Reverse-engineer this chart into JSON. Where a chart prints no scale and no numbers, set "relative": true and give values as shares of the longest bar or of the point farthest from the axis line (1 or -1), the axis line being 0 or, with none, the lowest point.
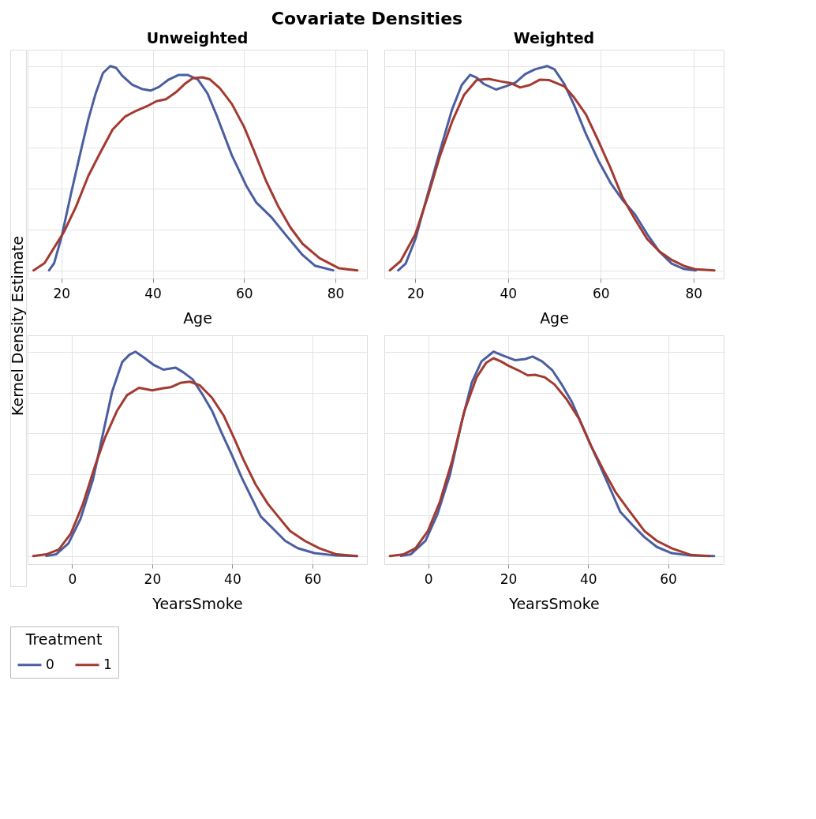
{
  "chart_data": [
    {
      "type": "line",
      "title": "Covariate Densities",
      "subtitle": "Unweighted",
      "xlabel": "Age",
      "ylabel": "Kernel Density Estimate",
      "relative": true,
      "xlim": [
        12.6,
        86.9
      ],
      "xticks": [
        20,
        40,
        60,
        80
      ],
      "grid": true,
      "legend": "bottom",
      "legend_title": "Treatment",
      "marker": "none",
      "line_style": "solid",
      "series": [
        {
          "name": "0",
          "color": "#4a5ea0",
          "x": [
            17.3,
            18.4,
            20,
            22.1,
            24.3,
            25.9,
            27.5,
            29.1,
            30.7,
            32.0,
            33.3,
            35.5,
            37.6,
            39.5,
            41.3,
            43.5,
            45.6,
            47.7,
            49.9,
            52.0,
            54.1,
            57.3,
            60.5,
            62.7,
            65.9,
            69.1,
            72.8,
            75.5,
            79.5
          ],
          "values": [
            0,
            0.035,
            0.161,
            0.375,
            0.589,
            0.74,
            0.866,
            0.966,
            1.0,
            0.991,
            0.953,
            0.909,
            0.888,
            0.88,
            0.897,
            0.934,
            0.956,
            0.956,
            0.934,
            0.865,
            0.752,
            0.564,
            0.413,
            0.331,
            0.262,
            0.174,
            0.075,
            0.023,
            0
          ]
        },
        {
          "name": "1",
          "color": "#a33a30",
          "x": [
            13.9,
            16.3,
            18.4,
            20.5,
            23.2,
            25.9,
            28.5,
            31.2,
            33.9,
            36.0,
            38.7,
            40.8,
            42.9,
            45.1,
            47.2,
            48.8,
            50.9,
            52.5,
            54.7,
            57.3,
            60.0,
            62.1,
            64.8,
            67.5,
            70.1,
            72.8,
            76.5,
            80.8,
            84.8
          ],
          "values": [
            0,
            0.035,
            0.111,
            0.186,
            0.312,
            0.463,
            0.576,
            0.689,
            0.752,
            0.777,
            0.803,
            0.828,
            0.838,
            0.872,
            0.916,
            0.941,
            0.945,
            0.935,
            0.891,
            0.815,
            0.702,
            0.589,
            0.438,
            0.312,
            0.211,
            0.13,
            0.06,
            0.01,
            0
          ]
        }
      ]
    },
    {
      "type": "line",
      "subtitle": "Weighted",
      "xlabel": "Age",
      "relative": true,
      "xlim": [
        13.3,
        86.5
      ],
      "xticks": [
        20,
        40,
        60,
        80
      ],
      "grid": true,
      "marker": "none",
      "line_style": "solid",
      "series": [
        {
          "color": "#4a5ea0",
          "x": [
            16.3,
            17.9,
            20,
            22.6,
            25.3,
            27.9,
            30.0,
            31.8,
            33.2,
            34.7,
            37.4,
            39.5,
            41.6,
            43.7,
            45.8,
            48.4,
            50.0,
            52.1,
            54.2,
            56.8,
            59.5,
            62.1,
            64.7,
            67.4,
            70.0,
            72.6,
            75.3,
            77.9,
            80.5
          ],
          "values": [
            0,
            0.033,
            0.153,
            0.368,
            0.584,
            0.787,
            0.907,
            0.957,
            0.943,
            0.913,
            0.885,
            0.901,
            0.919,
            0.961,
            0.984,
            1,
            0.984,
            0.913,
            0.811,
            0.667,
            0.536,
            0.428,
            0.344,
            0.273,
            0.177,
            0.093,
            0.033,
            0.007,
            0
          ]
        },
        {
          "color": "#a33a30",
          "x": [
            14.5,
            16.8,
            20,
            22.6,
            25.3,
            27.9,
            30.5,
            33.2,
            35.8,
            38.4,
            40.5,
            42.6,
            44.7,
            46.8,
            48.9,
            52.1,
            54.2,
            56.8,
            59.5,
            62.1,
            64.7,
            67.4,
            70.0,
            72.6,
            75.3,
            77.9,
            80.5,
            84.5
          ],
          "values": [
            0,
            0.045,
            0.177,
            0.356,
            0.56,
            0.727,
            0.859,
            0.931,
            0.937,
            0.925,
            0.917,
            0.895,
            0.907,
            0.933,
            0.931,
            0.901,
            0.847,
            0.763,
            0.632,
            0.5,
            0.356,
            0.249,
            0.153,
            0.093,
            0.051,
            0.022,
            0.005,
            0
          ]
        }
      ]
    },
    {
      "type": "line",
      "xlabel": "YearsSmoke",
      "relative": true,
      "xlim": [
        -11.1,
        73.6
      ],
      "xticks": [
        0,
        20,
        40,
        60
      ],
      "grid": true,
      "marker": "none",
      "line_style": "solid",
      "series": [
        {
          "color": "#4a5ea0",
          "x": [
            -6.4,
            -4.0,
            -0.9,
            2.1,
            5.2,
            7.6,
            10.0,
            12.5,
            14.3,
            15.8,
            17.9,
            20.3,
            22.8,
            25.8,
            27.7,
            30.1,
            32.5,
            35.0,
            37.4,
            39.9,
            42.3,
            44.7,
            47.1,
            50.2,
            53.2,
            56.3,
            60.5,
            66.0,
            71.1
          ],
          "values": [
            0,
            0.008,
            0.062,
            0.182,
            0.373,
            0.589,
            0.805,
            0.949,
            0.985,
            1,
            0.972,
            0.936,
            0.912,
            0.922,
            0.9,
            0.864,
            0.792,
            0.708,
            0.6,
            0.493,
            0.385,
            0.289,
            0.193,
            0.133,
            0.074,
            0.038,
            0.014,
            0.002,
            0
          ]
        },
        {
          "color": "#a33a30",
          "x": [
            -9.7,
            -6.4,
            -3.3,
            -0.3,
            2.7,
            5.8,
            8.2,
            11.2,
            13.7,
            16.7,
            20.0,
            22.8,
            24.6,
            27.0,
            29.4,
            31.9,
            34.9,
            37.9,
            40.4,
            42.8,
            45.8,
            48.9,
            51.4,
            54.4,
            58.1,
            61.7,
            66.0,
            71.1
          ],
          "values": [
            0,
            0.008,
            0.032,
            0.11,
            0.254,
            0.446,
            0.578,
            0.71,
            0.787,
            0.823,
            0.811,
            0.821,
            0.826,
            0.847,
            0.853,
            0.835,
            0.775,
            0.685,
            0.578,
            0.47,
            0.35,
            0.254,
            0.194,
            0.122,
            0.074,
            0.038,
            0.008,
            0
          ]
        }
      ]
    },
    {
      "type": "line",
      "xlabel": "YearsSmoke",
      "relative": true,
      "xlim": [
        -11.0,
        73.9
      ],
      "xticks": [
        0,
        20,
        40,
        60
      ],
      "grid": true,
      "marker": "none",
      "line_style": "solid",
      "series": [
        {
          "color": "#4a5ea0",
          "x": [
            -6.8,
            -4.4,
            -0.7,
            2.3,
            5.4,
            8.4,
            10.9,
            13.3,
            16.3,
            18.8,
            21.8,
            24.3,
            26.1,
            28.5,
            31.0,
            33.4,
            35.9,
            38.3,
            40.7,
            43.2,
            45.6,
            48.0,
            51.1,
            54.1,
            57.2,
            60.9,
            65.7,
            71.5
          ],
          "values": [
            0,
            0.008,
            0.074,
            0.205,
            0.396,
            0.659,
            0.85,
            0.952,
            1,
            0.98,
            0.958,
            0.964,
            0.976,
            0.952,
            0.91,
            0.839,
            0.755,
            0.648,
            0.54,
            0.432,
            0.325,
            0.217,
            0.151,
            0.092,
            0.044,
            0.014,
            0.002,
            0
          ]
        },
        {
          "color": "#a33a30",
          "x": [
            -9.6,
            -6.2,
            -3.2,
            -0.1,
            2.9,
            6.0,
            9.0,
            12.1,
            14.5,
            16.3,
            18.2,
            20.0,
            22.4,
            24.9,
            26.7,
            29.1,
            31.6,
            34.6,
            37.7,
            40.7,
            43.8,
            46.8,
            49.9,
            54.1,
            57.2,
            60.9,
            65.7,
            70.3
          ],
          "values": [
            0,
            0.008,
            0.038,
            0.122,
            0.265,
            0.468,
            0.707,
            0.875,
            0.946,
            0.968,
            0.952,
            0.932,
            0.91,
            0.884,
            0.887,
            0.875,
            0.839,
            0.767,
            0.672,
            0.54,
            0.421,
            0.314,
            0.231,
            0.122,
            0.074,
            0.038,
            0.005,
            0
          ]
        }
      ]
    }
  ]
}
